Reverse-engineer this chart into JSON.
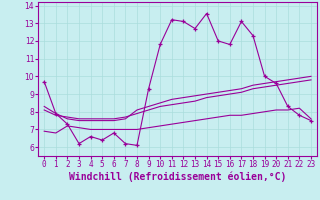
{
  "xlabel": "Windchill (Refroidissement éolien,°C)",
  "bg_color": "#c8eef0",
  "line_color": "#990099",
  "x_ticks": [
    0,
    1,
    2,
    3,
    4,
    5,
    6,
    7,
    8,
    9,
    10,
    11,
    12,
    13,
    14,
    15,
    16,
    17,
    18,
    19,
    20,
    21,
    22,
    23
  ],
  "ylim": [
    5.5,
    14.2
  ],
  "xlim": [
    -0.5,
    23.5
  ],
  "series1_x": [
    0,
    1,
    2,
    3,
    4,
    5,
    6,
    7,
    8,
    9,
    10,
    11,
    12,
    13,
    14,
    15,
    16,
    17,
    18,
    19,
    20,
    21,
    22,
    23
  ],
  "series1_y": [
    9.7,
    7.9,
    7.3,
    6.2,
    6.6,
    6.4,
    6.8,
    6.2,
    6.1,
    9.3,
    11.8,
    13.2,
    13.1,
    12.7,
    13.55,
    12.0,
    11.8,
    13.1,
    12.3,
    10.0,
    9.6,
    8.3,
    7.8,
    7.5
  ],
  "series2_x": [
    0,
    1,
    2,
    3,
    4,
    5,
    6,
    7,
    8,
    9,
    10,
    11,
    12,
    13,
    14,
    15,
    16,
    17,
    18,
    19,
    20,
    21,
    22,
    23
  ],
  "series2_y": [
    8.3,
    7.9,
    7.6,
    7.5,
    7.5,
    7.5,
    7.5,
    7.6,
    8.1,
    8.3,
    8.5,
    8.7,
    8.8,
    8.9,
    9.0,
    9.1,
    9.2,
    9.3,
    9.5,
    9.6,
    9.7,
    9.8,
    9.9,
    10.0
  ],
  "series3_x": [
    0,
    1,
    2,
    3,
    4,
    5,
    6,
    7,
    8,
    9,
    10,
    11,
    12,
    13,
    14,
    15,
    16,
    17,
    18,
    19,
    20,
    21,
    22,
    23
  ],
  "series3_y": [
    8.1,
    7.8,
    7.7,
    7.6,
    7.6,
    7.6,
    7.6,
    7.7,
    7.9,
    8.1,
    8.3,
    8.4,
    8.5,
    8.6,
    8.8,
    8.9,
    9.0,
    9.1,
    9.3,
    9.4,
    9.5,
    9.6,
    9.7,
    9.8
  ],
  "series4_x": [
    0,
    1,
    2,
    3,
    4,
    5,
    6,
    7,
    8,
    9,
    10,
    11,
    12,
    13,
    14,
    15,
    16,
    17,
    18,
    19,
    20,
    21,
    22,
    23
  ],
  "series4_y": [
    6.9,
    6.8,
    7.2,
    7.1,
    7.0,
    7.0,
    7.0,
    7.0,
    7.0,
    7.1,
    7.2,
    7.3,
    7.4,
    7.5,
    7.6,
    7.7,
    7.8,
    7.8,
    7.9,
    8.0,
    8.1,
    8.1,
    8.2,
    7.6
  ],
  "grid_color": "#aadddd",
  "tick_fontsize": 5.5,
  "xlabel_fontsize": 7
}
